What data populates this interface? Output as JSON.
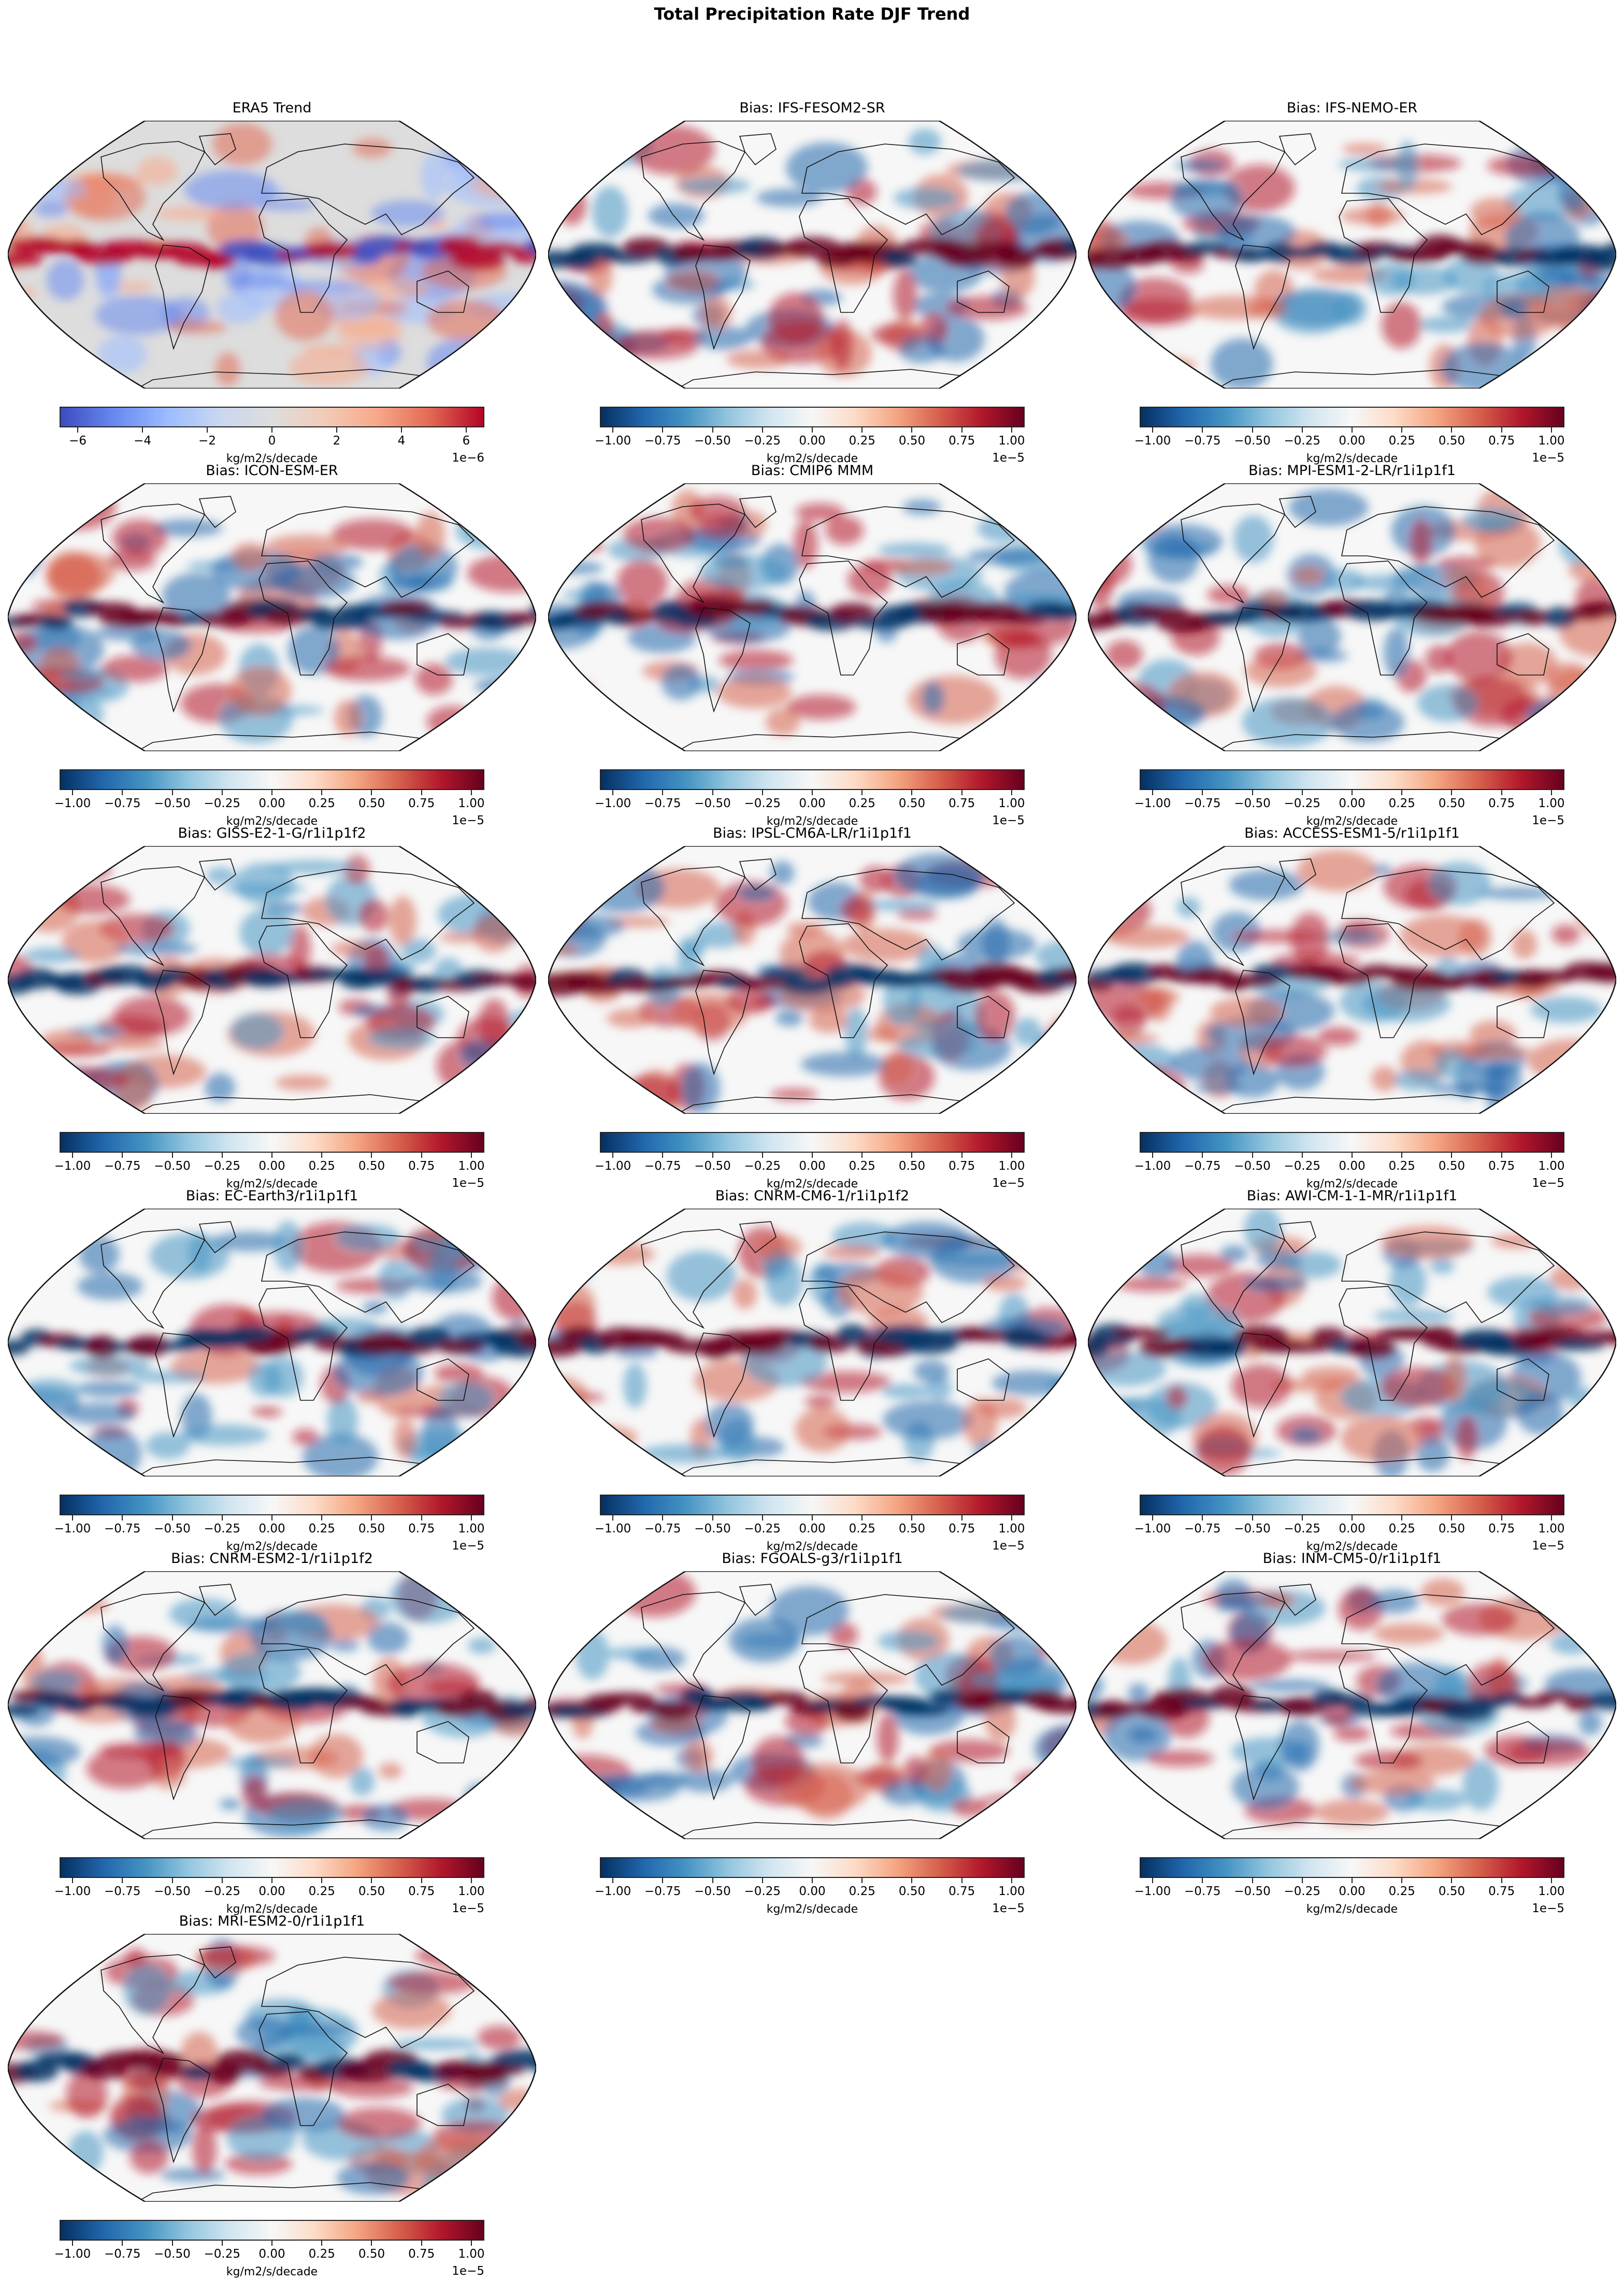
{
  "figure": {
    "title": "Total Precipitation Rate DJF Trend"
  },
  "colormaps": {
    "coolwarm": [
      "#3b4cc0",
      "#6788ee",
      "#9abbff",
      "#c9d7f0",
      "#dddddd",
      "#f2cbb7",
      "#f7a889",
      "#e26952",
      "#b40426"
    ],
    "RdBu_r": [
      "#053061",
      "#2166ac",
      "#4393c3",
      "#92c5de",
      "#d1e5f0",
      "#f7f7f7",
      "#fddbc7",
      "#f4a582",
      "#d6604d",
      "#b2182b",
      "#67001f"
    ]
  },
  "chart_data": {
    "type": "heatmap",
    "projection": "Robinson",
    "panels": [
      {
        "title": "ERA5 Trend",
        "cmap": "coolwarm",
        "vlim": [
          -6.56e-06,
          6.56e-06
        ],
        "ticks": [
          -6,
          -4,
          -2,
          0,
          2,
          4,
          6
        ],
        "tick_labels": [
          "−6",
          "−4",
          "−2",
          "0",
          "2",
          "4",
          "6"
        ],
        "tick_scale": 1e-06,
        "offset_text": "1e−6",
        "unit": "kg/m2/s/decade"
      },
      {
        "title": "Bias: IFS-FESOM2-SR",
        "cmap": "RdBu_r"
      },
      {
        "title": "Bias: IFS-NEMO-ER",
        "cmap": "RdBu_r"
      },
      {
        "title": "Bias: ICON-ESM-ER",
        "cmap": "RdBu_r"
      },
      {
        "title": "Bias: CMIP6 MMM",
        "cmap": "RdBu_r"
      },
      {
        "title": "Bias: MPI-ESM1-2-LR/r1i1p1f1",
        "cmap": "RdBu_r"
      },
      {
        "title": "Bias: GISS-E2-1-G/r1i1p1f2",
        "cmap": "RdBu_r"
      },
      {
        "title": "Bias: IPSL-CM6A-LR/r1i1p1f1",
        "cmap": "RdBu_r"
      },
      {
        "title": "Bias: ACCESS-ESM1-5/r1i1p1f1",
        "cmap": "RdBu_r"
      },
      {
        "title": "Bias: EC-Earth3/r1i1p1f1",
        "cmap": "RdBu_r"
      },
      {
        "title": "Bias: CNRM-CM6-1/r1i1p1f2",
        "cmap": "RdBu_r"
      },
      {
        "title": "Bias: AWI-CM-1-1-MR/r1i1p1f1",
        "cmap": "RdBu_r"
      },
      {
        "title": "Bias: CNRM-ESM2-1/r1i1p1f2",
        "cmap": "RdBu_r"
      },
      {
        "title": "Bias: FGOALS-g3/r1i1p1f1",
        "cmap": "RdBu_r"
      },
      {
        "title": "Bias: INM-CM5-0/r1i1p1f1",
        "cmap": "RdBu_r"
      },
      {
        "title": "Bias: MRI-ESM2-0/r1i1p1f1",
        "cmap": "RdBu_r"
      }
    ],
    "bias_colorbar": {
      "vlim": [
        -1.065e-05,
        1.065e-05
      ],
      "ticks": [
        -1,
        -0.75,
        -0.5,
        -0.25,
        0,
        0.25,
        0.5,
        0.75,
        1
      ],
      "tick_labels": [
        "−1.00",
        "−0.75",
        "−0.50",
        "−0.25",
        "0.00",
        "0.25",
        "0.50",
        "0.75",
        "1.00"
      ],
      "tick_scale": 1e-05,
      "offset_text": "1e−5",
      "unit": "kg/m2/s/decade"
    }
  }
}
